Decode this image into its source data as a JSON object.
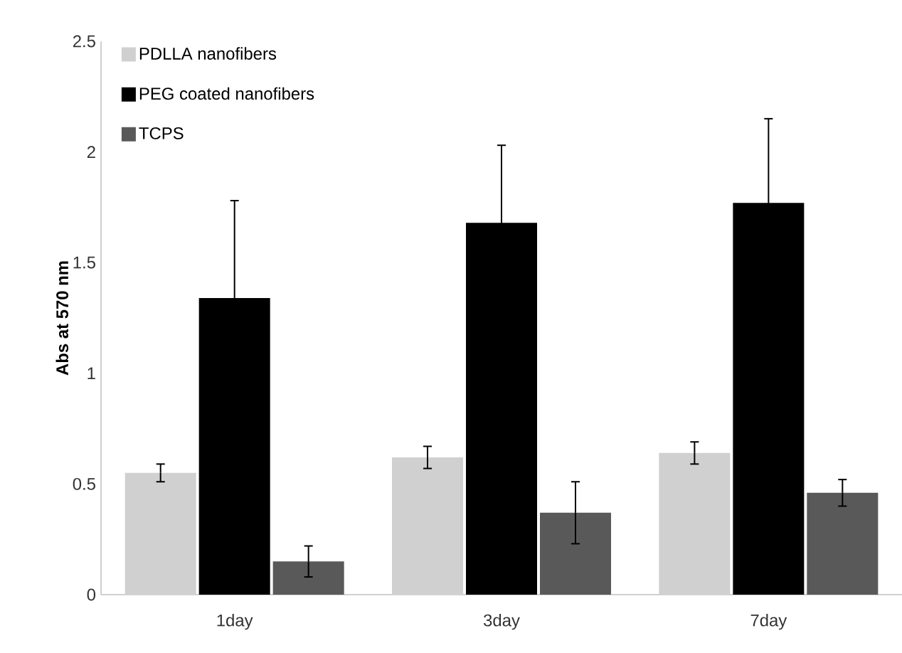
{
  "chart_data": {
    "type": "bar",
    "ylabel": "Abs at 570 nm",
    "categories": [
      "1day",
      "3day",
      "7day"
    ],
    "series": [
      {
        "name": "PDLLA nanofibers",
        "color": "#d0d0d0",
        "values": [
          0.55,
          0.62,
          0.64
        ],
        "errors": [
          0.04,
          0.05,
          0.05
        ]
      },
      {
        "name": "PEG coated nanofibers",
        "color": "#000000",
        "values": [
          1.34,
          1.68,
          1.77
        ],
        "errors": [
          0.44,
          0.35,
          0.38
        ]
      },
      {
        "name": "TCPS",
        "color": "#595959",
        "values": [
          0.15,
          0.37,
          0.46
        ],
        "errors": [
          0.07,
          0.14,
          0.06
        ]
      }
    ],
    "ylim": [
      0,
      2.5
    ],
    "yticks": [
      0,
      0.5,
      1,
      1.5,
      2,
      2.5
    ],
    "grid": false,
    "legend": "top left"
  }
}
